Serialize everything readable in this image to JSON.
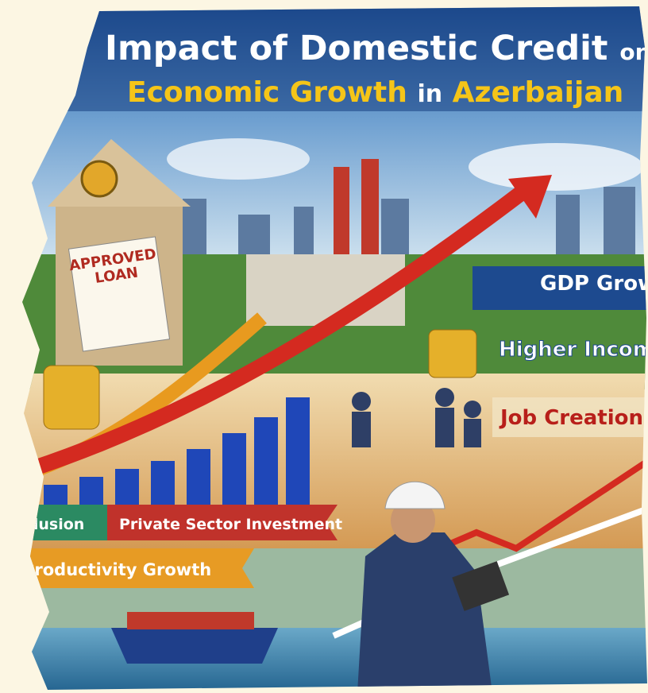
{
  "header": {
    "title_line1": [
      "Impact of Domestic Credit",
      "on"
    ],
    "title_line2": [
      "Economic Growth",
      "in",
      "Azerbaijan"
    ]
  },
  "document": {
    "stamp": "APPROVED",
    "subject": "LOAN"
  },
  "banners": [
    "GDP Grow",
    "Higher Incom",
    "Job Creation"
  ],
  "ribbons": [
    "Inclusion",
    "Private Sector Investment",
    "Productivity Growth"
  ]
}
